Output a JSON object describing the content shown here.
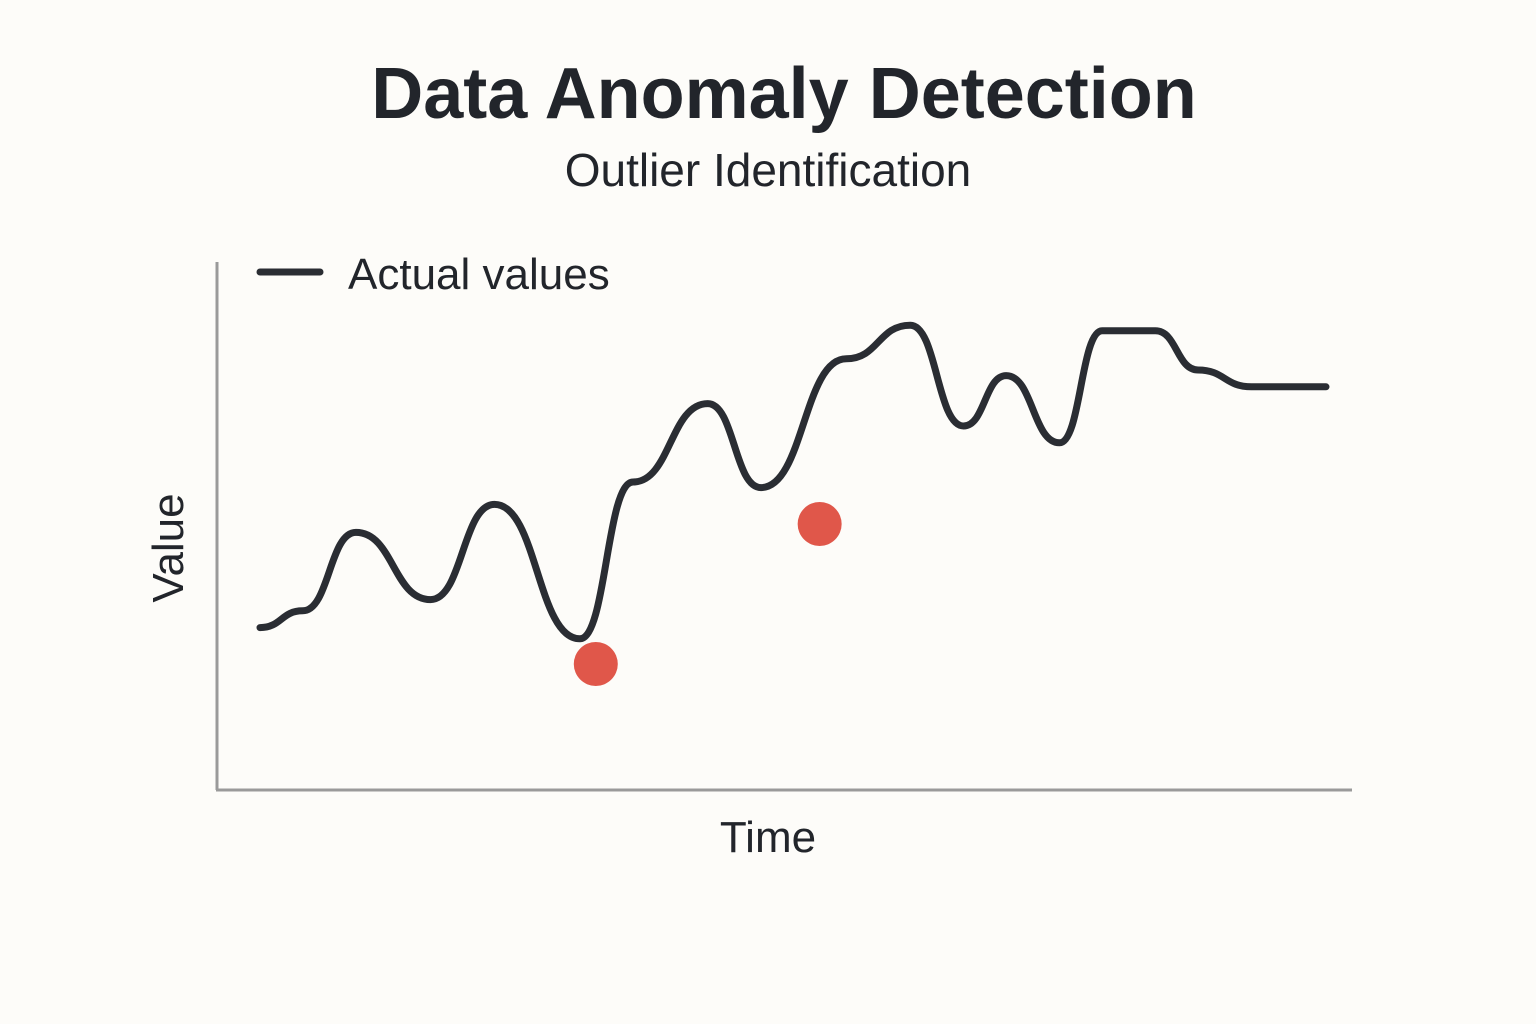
{
  "colors": {
    "background": "#fdfcf9",
    "text": "#22252b",
    "line": "#2a2d33",
    "axis": "#9a9a9a",
    "anomaly": "#e0574a"
  },
  "chart_data": {
    "type": "line",
    "title": "Data Anomaly Detection",
    "subtitle": "Outlier Identification",
    "xlabel": "Time",
    "ylabel": "Value",
    "grid": false,
    "legend_position": "top-left",
    "xlim": [
      0,
      100
    ],
    "ylim": [
      0,
      100
    ],
    "series": [
      {
        "name": "Actual values",
        "x": [
          0,
          4,
          9,
          16,
          22,
          30,
          35,
          42,
          47,
          55,
          61,
          66,
          70,
          75,
          79,
          84,
          88,
          93,
          100
        ],
        "y": [
          29,
          32,
          46,
          34,
          51,
          27,
          55,
          69,
          54,
          77,
          83,
          65,
          74,
          62,
          82,
          82,
          75,
          72,
          72
        ]
      }
    ],
    "anomalies": [
      {
        "x": 31.5,
        "y": 22.5
      },
      {
        "x": 52.5,
        "y": 47.5
      }
    ]
  }
}
